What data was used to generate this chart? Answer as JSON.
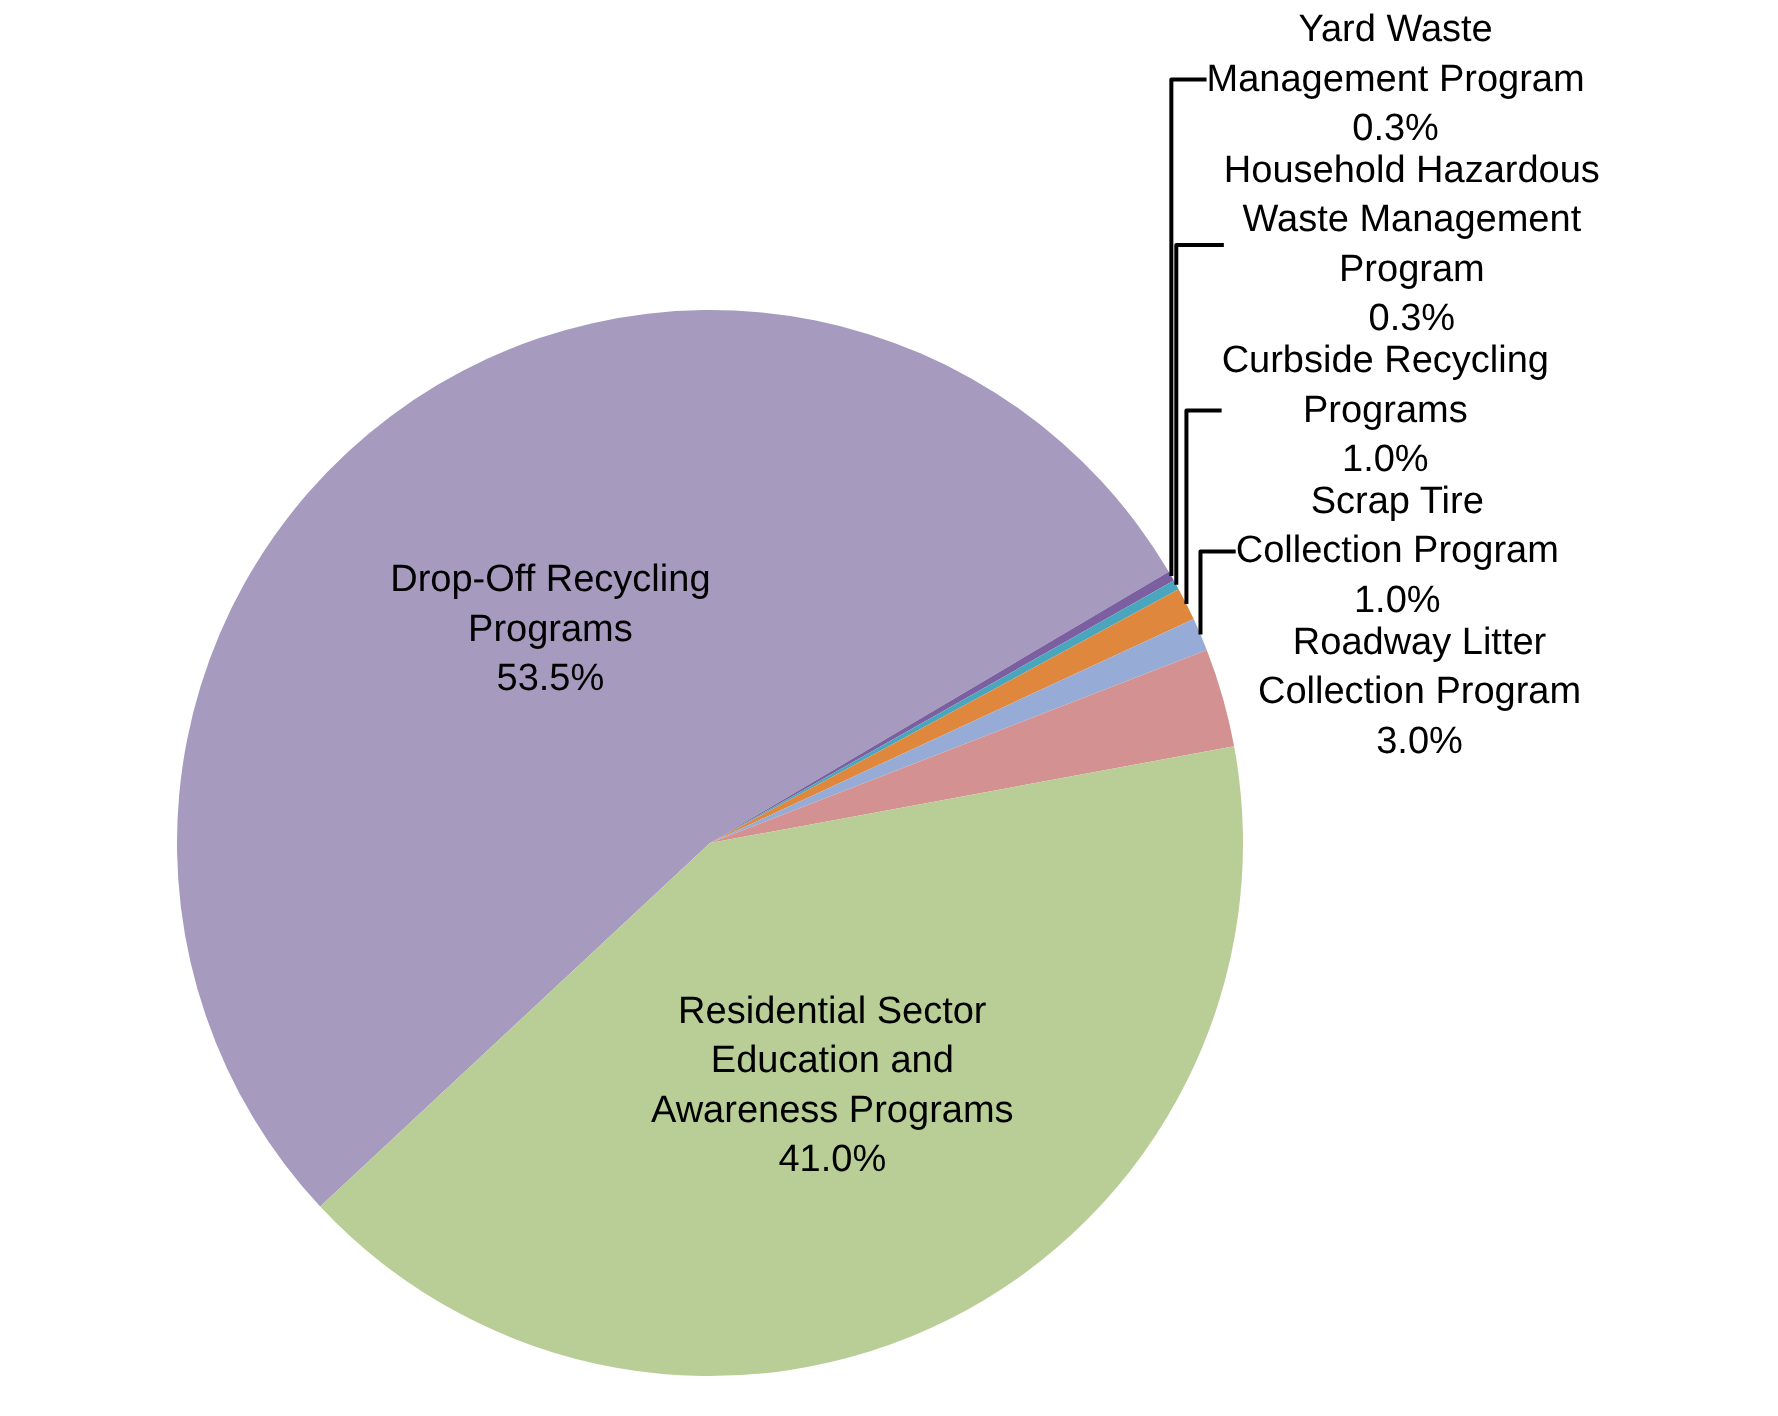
{
  "chart_data": {
    "type": "pie",
    "categories": [
      "Drop-Off Recycling Programs",
      "Yard Waste Management Program",
      "Household Hazardous Waste Management Program",
      "Curbside Recycling Programs",
      "Scrap Tire Collection Program",
      "Roadway Litter Collection Program",
      "Residential Sector Education and Awareness Programs"
    ],
    "values": [
      53.5,
      0.3,
      0.3,
      1.0,
      1.0,
      3.0,
      41.0
    ],
    "colors": [
      "#a69bbf",
      "#7b5fa0",
      "#4aa6bd",
      "#e0873e",
      "#96acd6",
      "#d39291",
      "#b9ce96"
    ],
    "value_labels": [
      "53.5%",
      "0.3%",
      "0.3%",
      "1.0%",
      "1.0%",
      "3.0%",
      "41.0%"
    ],
    "legend": false
  }
}
